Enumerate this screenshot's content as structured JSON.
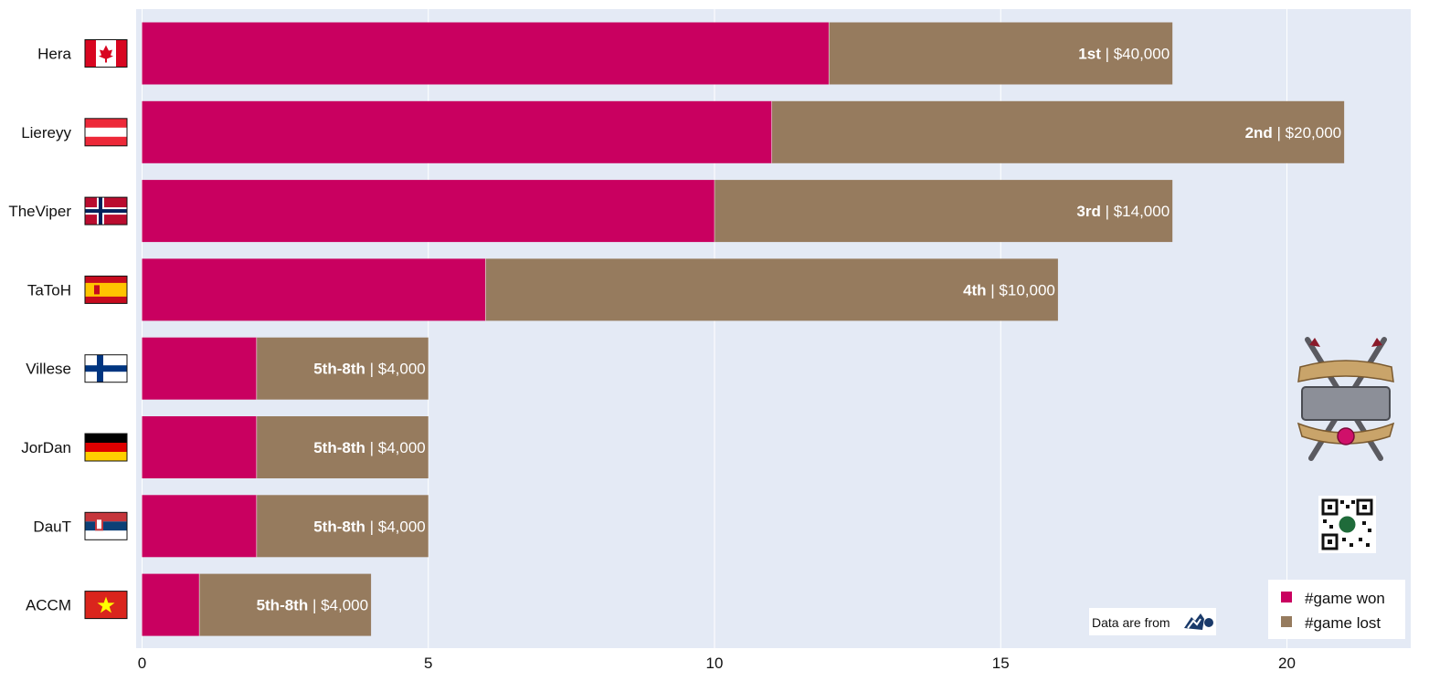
{
  "colors": {
    "won": "#c90060",
    "lost": "#967b5e",
    "plot_bg": "#e4eaf5",
    "grid": "#ffffff"
  },
  "legend": {
    "won_label": "#game won",
    "lost_label": "#game lost"
  },
  "source": {
    "label": "Data are from"
  },
  "chart_data": {
    "type": "bar",
    "orientation": "horizontal",
    "stacked": true,
    "categories": [
      "Hera",
      "Liereyy",
      "TheViper",
      "TaToH",
      "Villese",
      "JorDan",
      "DauT",
      "ACCM"
    ],
    "flags": [
      "canada-flag-icon",
      "austria-flag-icon",
      "norway-flag-icon",
      "spain-flag-icon",
      "finland-flag-icon",
      "germany-flag-icon",
      "serbia-flag-icon",
      "vietnam-flag-icon"
    ],
    "series": [
      {
        "name": "#game won",
        "values": [
          12,
          11,
          10,
          6,
          2,
          2,
          2,
          1
        ]
      },
      {
        "name": "#game lost",
        "values": [
          6,
          10,
          8,
          10,
          3,
          3,
          3,
          3
        ]
      }
    ],
    "annotations": [
      {
        "place": "1st",
        "prize": "$40,000"
      },
      {
        "place": "2nd",
        "prize": "$20,000"
      },
      {
        "place": "3rd",
        "prize": "$14,000"
      },
      {
        "place": "4th",
        "prize": "$10,000"
      },
      {
        "place": "5th-8th",
        "prize": "$4,000"
      },
      {
        "place": "5th-8th",
        "prize": "$4,000"
      },
      {
        "place": "5th-8th",
        "prize": "$4,000"
      },
      {
        "place": "5th-8th",
        "prize": "$4,000"
      }
    ],
    "xlim": [
      0,
      22
    ],
    "xticks": [
      0,
      5,
      10,
      15,
      20
    ],
    "xlabel": "",
    "ylabel": "",
    "grid": true,
    "legend_position": "bottom-right"
  }
}
